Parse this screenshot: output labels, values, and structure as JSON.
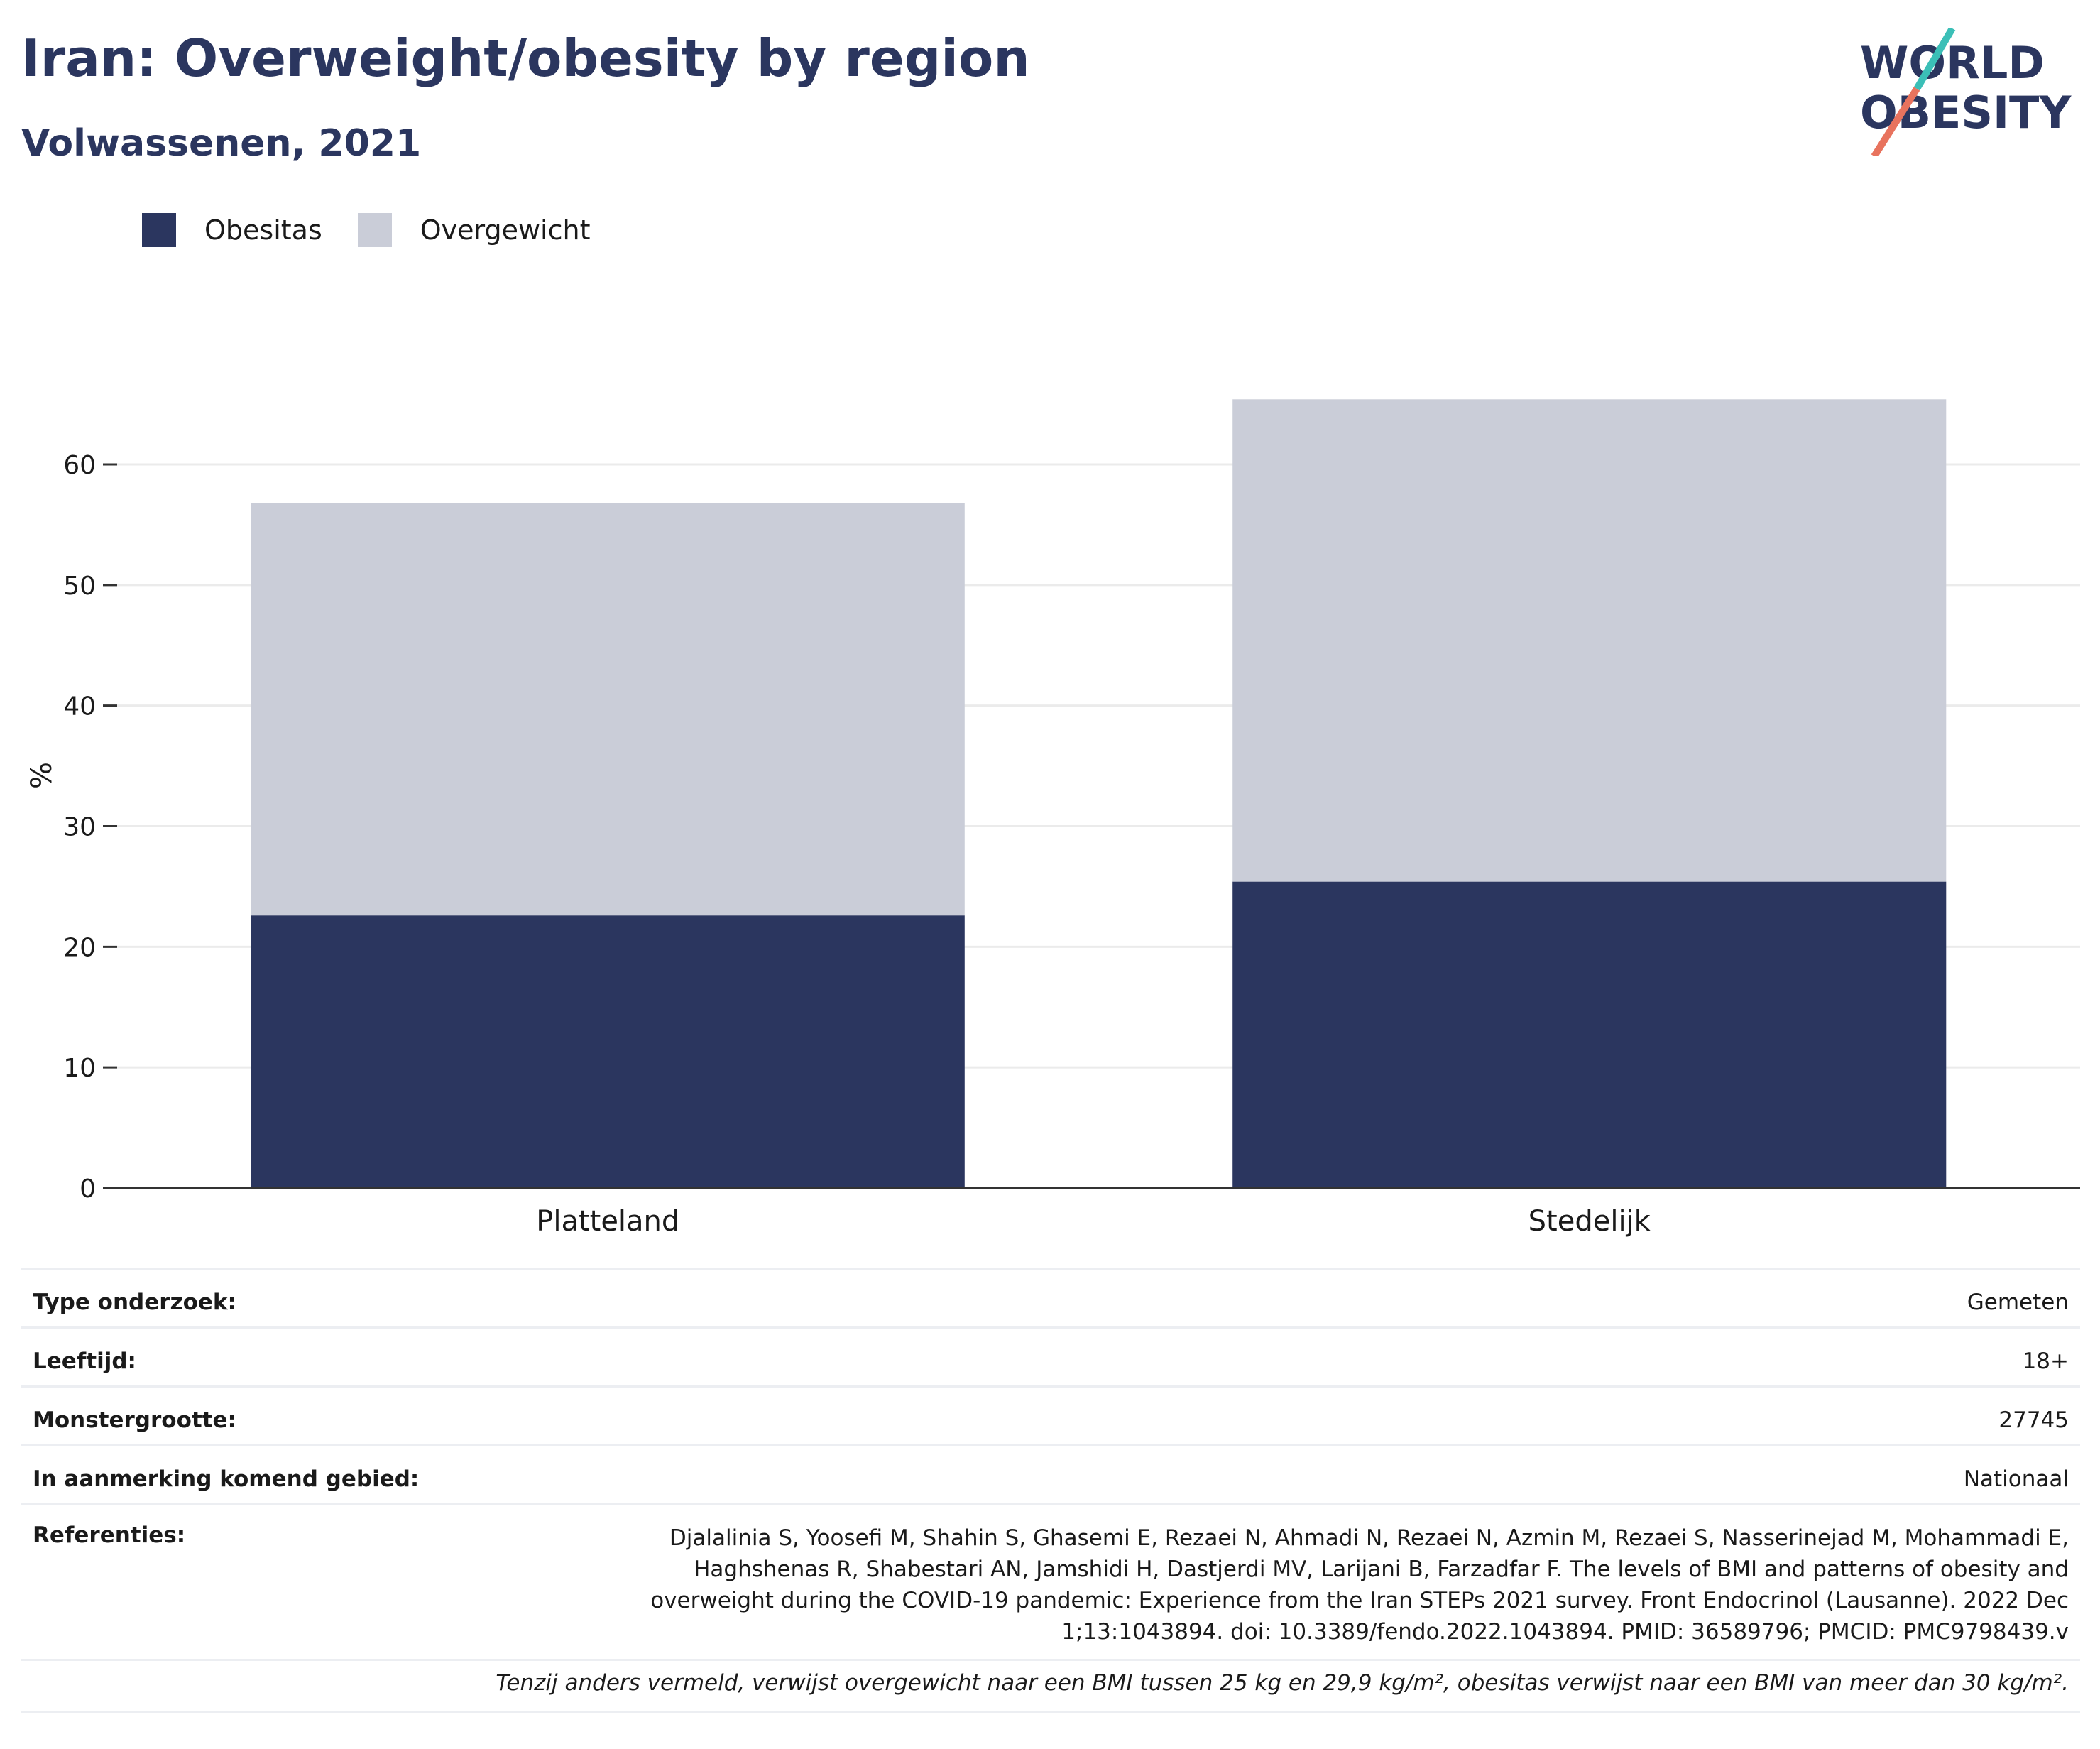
{
  "header": {
    "title": "Iran: Overweight/obesity by region",
    "subtitle": "Volwassenen, 2021"
  },
  "logo": {
    "line1": "WORLD",
    "line2": "OBESITY"
  },
  "colors": {
    "obesity": "#2b365f",
    "overweight": "#cacdd8",
    "text": "#2b365f",
    "logo_teal": "#3bbfb7",
    "logo_coral": "#e8735e"
  },
  "chart_data": {
    "type": "bar",
    "stacked": true,
    "categories": [
      "Platteland",
      "Stedelijk"
    ],
    "series": [
      {
        "name": "Obesitas",
        "values": [
          22.6,
          25.4
        ]
      },
      {
        "name": "Overgewicht",
        "values": [
          34.2,
          40.0
        ]
      }
    ],
    "ylabel": "%",
    "ylim": [
      0,
      65
    ],
    "yticks": [
      0,
      10,
      20,
      30,
      40,
      50,
      60
    ],
    "grid": true,
    "legend": "top-left"
  },
  "meta": [
    {
      "label": "Type onderzoek:",
      "value": "Gemeten"
    },
    {
      "label": "Leeftijd:",
      "value": "18+"
    },
    {
      "label": "Monstergrootte:",
      "value": "27745"
    },
    {
      "label": "In aanmerking komend gebied:",
      "value": "Nationaal"
    }
  ],
  "references": {
    "label": "Referenties:",
    "value": "Djalalinia S, Yoosefi M, Shahin S, Ghasemi E, Rezaei N, Ahmadi N, Rezaei N, Azmin M, Rezaei S, Nasserinejad M, Mohammadi E, Haghshenas R, Shabestari AN, Jamshidi H, Dastjerdi MV, Larijani B, Farzadfar F. The levels of BMI and patterns of obesity and overweight during the COVID-19 pandemic: Experience from the Iran STEPs 2021 survey. Front Endocrinol (Lausanne). 2022 Dec 1;13:1043894. doi: 10.3389/fendo.2022.1043894. PMID: 36589796; PMCID: PMC9798439.v"
  },
  "note": "Tenzij anders vermeld, verwijst overgewicht naar een BMI tussen 25 kg en 29,9 kg/m², obesitas verwijst naar een BMI van meer dan 30 kg/m²."
}
